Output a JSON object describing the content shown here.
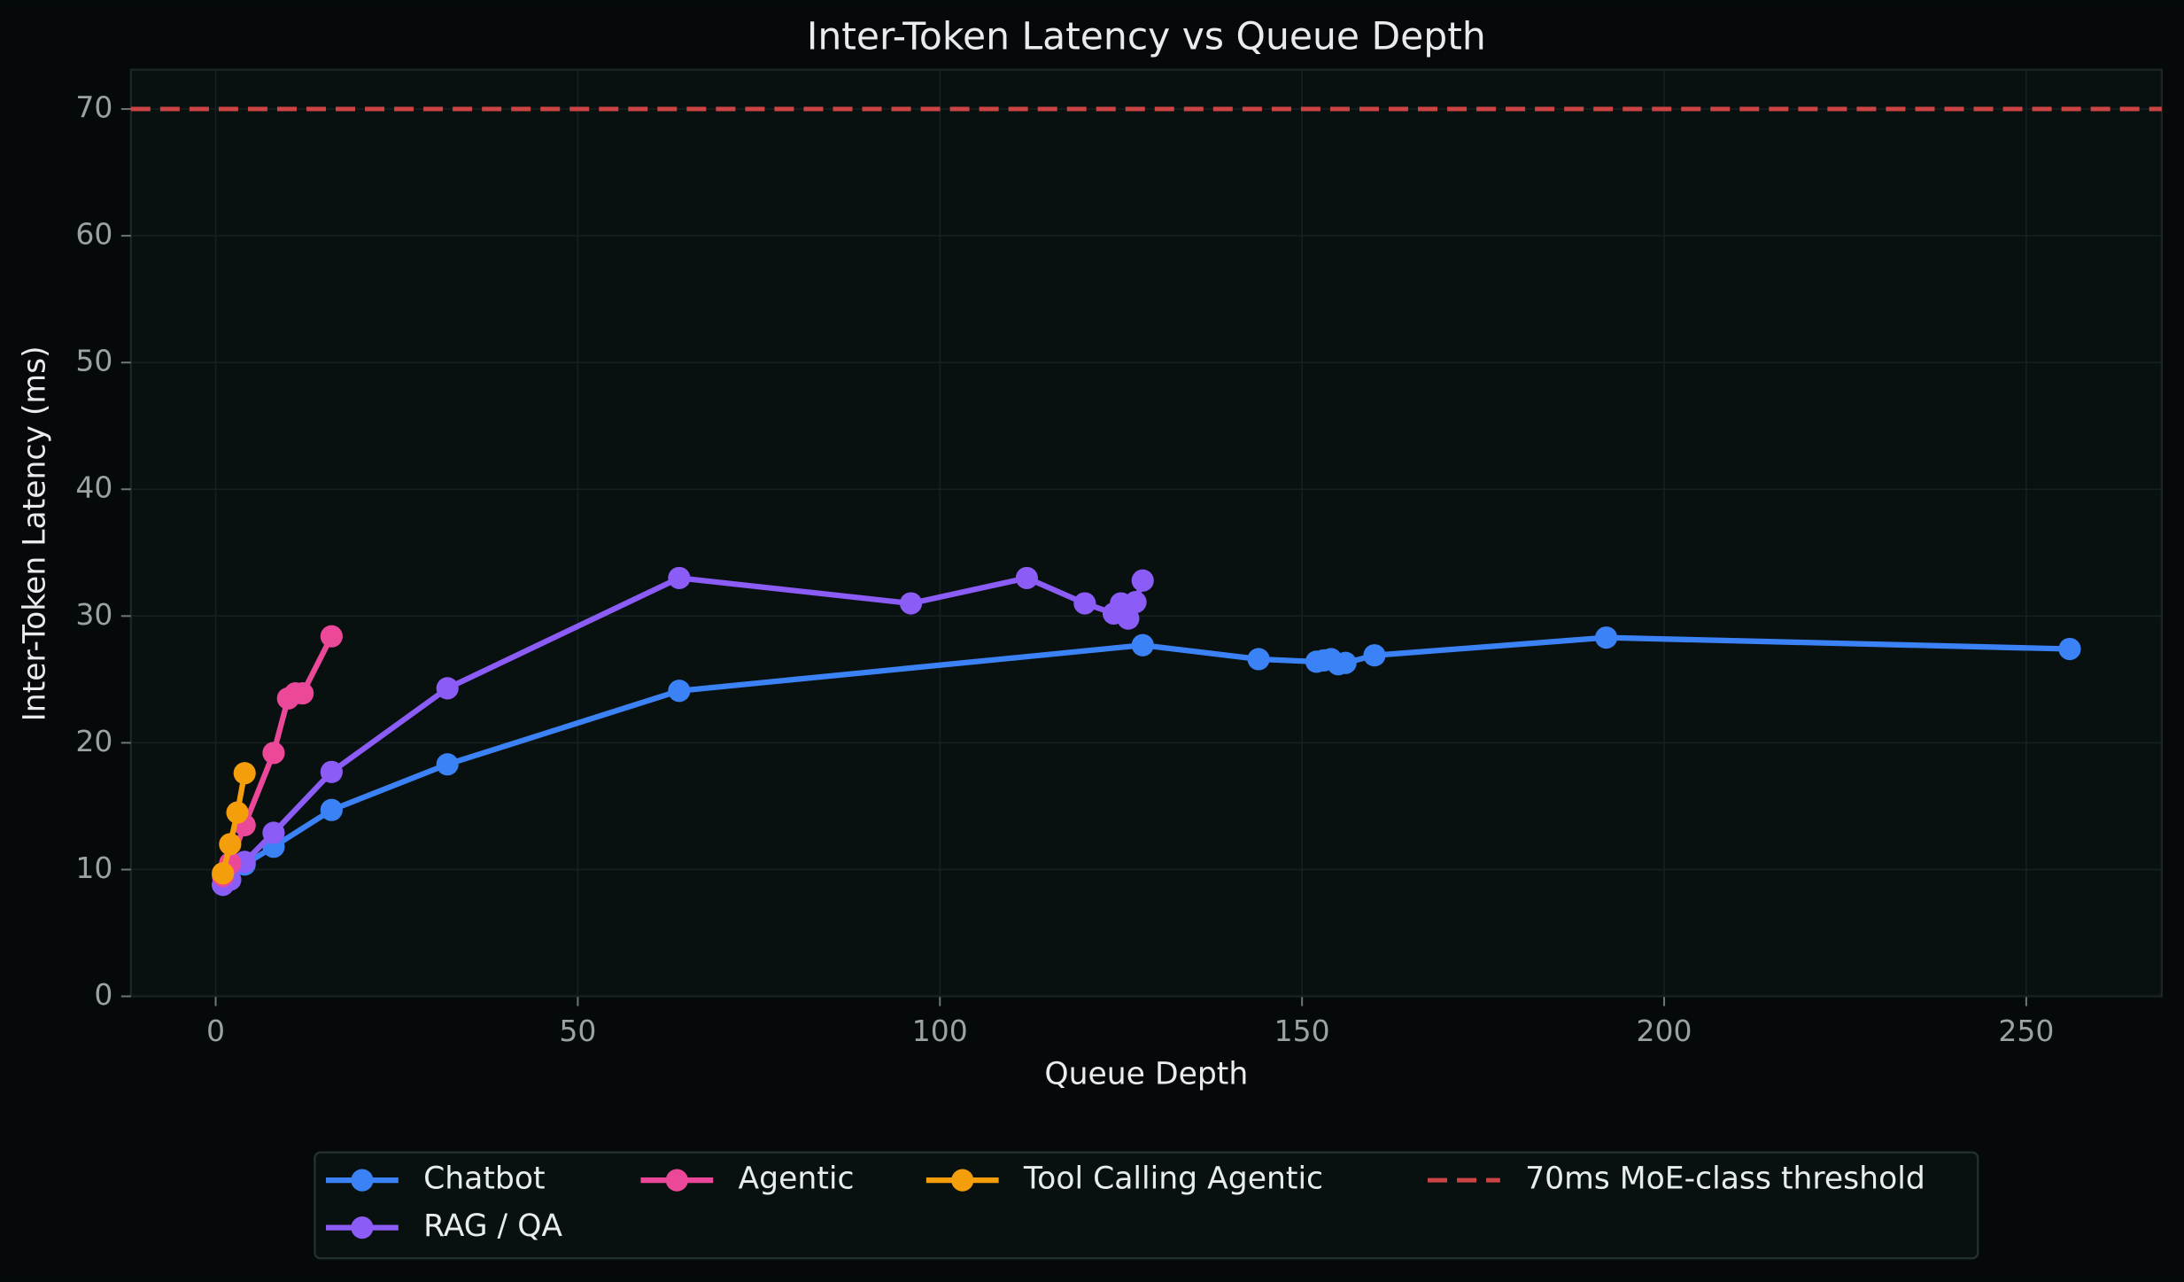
{
  "chart_data": {
    "type": "line",
    "title": "Inter-Token Latency vs Queue Depth",
    "xlabel": "Queue Depth",
    "ylabel": "Inter-Token Latency (ms)",
    "xlim": [
      -11.7,
      268.7
    ],
    "ylim": [
      0,
      73.1
    ],
    "xticks": [
      0,
      50,
      100,
      150,
      200,
      250
    ],
    "yticks": [
      0,
      10,
      20,
      30,
      40,
      50,
      60,
      70
    ],
    "grid": true,
    "legend": "bottom",
    "series": [
      {
        "name": "Chatbot",
        "color": "#3b82f6",
        "x": [
          1,
          2,
          4,
          8,
          16,
          32,
          64,
          128,
          144,
          152,
          153,
          154,
          155,
          156,
          160,
          192,
          256
        ],
        "values": [
          8.8,
          9.2,
          10.4,
          11.8,
          14.7,
          18.3,
          24.1,
          27.7,
          26.6,
          26.4,
          26.5,
          26.6,
          26.2,
          26.3,
          26.9,
          28.3,
          27.4
        ]
      },
      {
        "name": "RAG / QA",
        "color": "#8b5cf6",
        "x": [
          1,
          2,
          4,
          8,
          16,
          32,
          64,
          96,
          112,
          120,
          124,
          125,
          126,
          127,
          128
        ],
        "values": [
          8.8,
          9.2,
          10.6,
          12.9,
          17.7,
          24.3,
          33.0,
          31.0,
          33.0,
          31.0,
          30.2,
          31.0,
          29.8,
          31.1,
          32.8
        ]
      },
      {
        "name": "Agentic",
        "color": "#ec4899",
        "x": [
          1,
          2,
          4,
          8,
          10,
          11,
          12,
          16
        ],
        "values": [
          9.5,
          10.5,
          13.5,
          19.2,
          23.5,
          23.9,
          23.9,
          28.4
        ]
      },
      {
        "name": "Tool Calling Agentic",
        "color": "#f59e0b",
        "x": [
          1,
          2,
          3,
          4
        ],
        "values": [
          9.7,
          12.0,
          14.5,
          17.6
        ]
      }
    ],
    "threshold": {
      "value": 70,
      "label": "70ms MoE-class threshold",
      "color": "#cc4444"
    }
  }
}
